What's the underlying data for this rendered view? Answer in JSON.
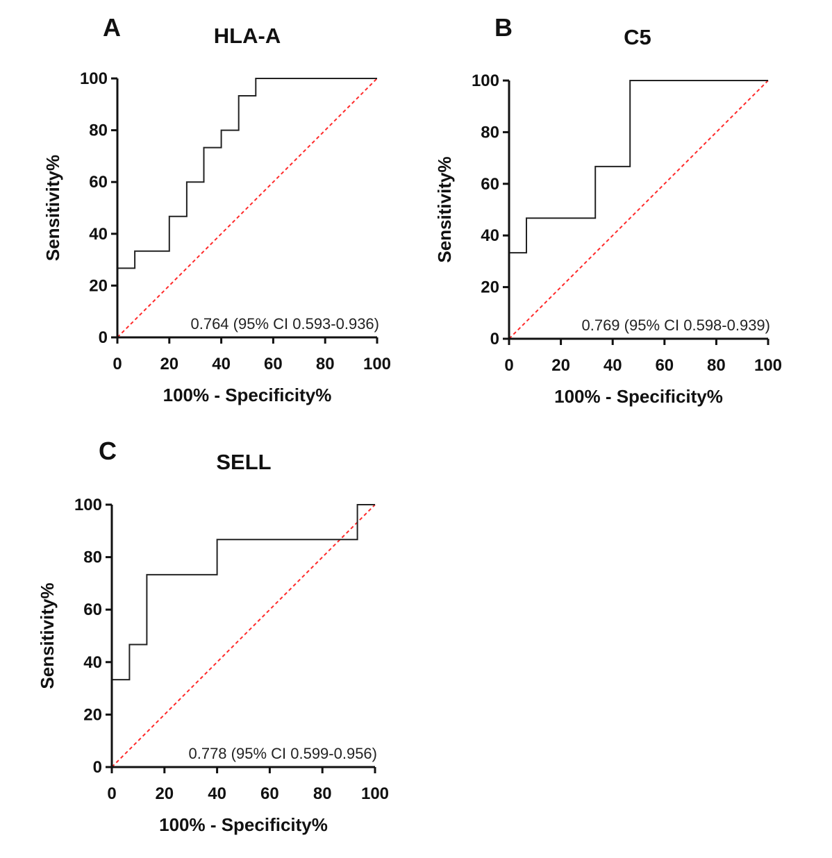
{
  "chart_data": [
    {
      "type": "line",
      "panel": "A",
      "title": "HLA-A",
      "xlabel": "100% - Specificity%",
      "ylabel": "Sensitivity%",
      "xlim": [
        0,
        100
      ],
      "ylim": [
        0,
        100
      ],
      "xticks": [
        "0",
        "20",
        "40",
        "60",
        "80",
        "100"
      ],
      "yticks": [
        "0",
        "20",
        "40",
        "60",
        "80",
        "100"
      ],
      "annotation": "0.764 (95% CI 0.593-0.936)",
      "roc": {
        "x": [
          0,
          0,
          6.7,
          6.7,
          20,
          20,
          26.7,
          26.7,
          33.3,
          33.3,
          40,
          40,
          46.7,
          46.7,
          53.3,
          53.3,
          100
        ],
        "y": [
          0,
          26.7,
          26.7,
          33.3,
          33.3,
          46.7,
          46.7,
          60,
          60,
          73.3,
          73.3,
          80,
          80,
          93.3,
          93.3,
          100,
          100
        ]
      },
      "reference": {
        "x": [
          0,
          100
        ],
        "y": [
          0,
          100
        ],
        "color": "#ff2a2a"
      }
    },
    {
      "type": "line",
      "panel": "B",
      "title": "C5",
      "xlabel": "100% - Specificity%",
      "ylabel": "Sensitivity%",
      "xlim": [
        0,
        100
      ],
      "ylim": [
        0,
        100
      ],
      "xticks": [
        "0",
        "20",
        "40",
        "60",
        "80",
        "100"
      ],
      "yticks": [
        "0",
        "20",
        "40",
        "60",
        "80",
        "100"
      ],
      "annotation": "0.769 (95% CI 0.598-0.939)",
      "roc": {
        "x": [
          0,
          0,
          6.7,
          6.7,
          33.3,
          33.3,
          46.7,
          46.7,
          100
        ],
        "y": [
          0,
          33.3,
          33.3,
          46.7,
          46.7,
          66.7,
          66.7,
          100,
          100
        ]
      },
      "reference": {
        "x": [
          0,
          100
        ],
        "y": [
          0,
          100
        ],
        "color": "#ff2a2a"
      }
    },
    {
      "type": "line",
      "panel": "C",
      "title": "SELL",
      "xlabel": "100% - Specificity%",
      "ylabel": "Sensitivity%",
      "xlim": [
        0,
        100
      ],
      "ylim": [
        0,
        100
      ],
      "xticks": [
        "0",
        "20",
        "40",
        "60",
        "80",
        "100"
      ],
      "yticks": [
        "0",
        "20",
        "40",
        "60",
        "80",
        "100"
      ],
      "annotation": "0.778 (95% CI 0.599-0.956)",
      "roc": {
        "x": [
          0,
          0,
          6.7,
          6.7,
          13.3,
          13.3,
          40,
          40,
          93.3,
          93.3,
          100
        ],
        "y": [
          0,
          33.3,
          33.3,
          46.7,
          46.7,
          73.3,
          73.3,
          86.7,
          86.7,
          100,
          100
        ]
      },
      "reference": {
        "x": [
          0,
          100
        ],
        "y": [
          0,
          100
        ],
        "color": "#ff2a2a"
      }
    }
  ]
}
